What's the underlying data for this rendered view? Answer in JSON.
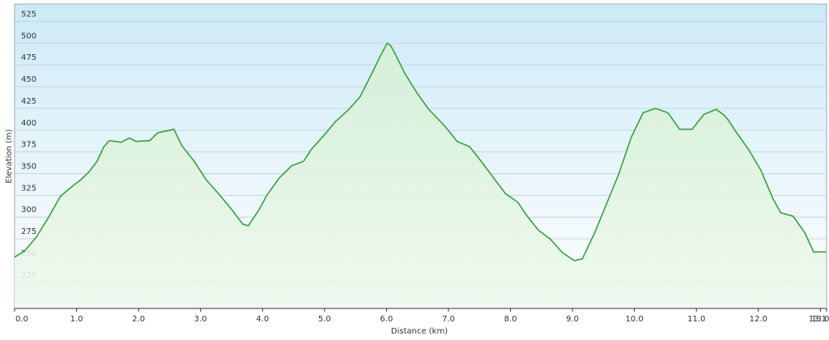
{
  "chart_data": {
    "type": "area",
    "xlabel": "Distance  (km)",
    "ylabel": "Elevation (m)",
    "color": "#3a9e3f",
    "x": [
      0,
      0.16,
      0.35,
      0.55,
      0.74,
      0.94,
      1.07,
      1.2,
      1.33,
      1.44,
      1.53,
      1.72,
      1.85,
      1.96,
      2.18,
      2.31,
      2.51,
      2.57,
      2.7,
      2.9,
      3.09,
      3.29,
      3.49,
      3.68,
      3.77,
      3.94,
      4.07,
      4.27,
      4.47,
      4.66,
      4.79,
      4.99,
      5.18,
      5.38,
      5.57,
      5.77,
      5.9,
      6.01,
      6.07,
      6.16,
      6.29,
      6.49,
      6.68,
      6.95,
      7.14,
      7.34,
      7.53,
      7.73,
      7.92,
      8.12,
      8.25,
      8.45,
      8.64,
      8.84,
      9.03,
      9.16,
      9.36,
      9.56,
      9.75,
      9.95,
      10.14,
      10.34,
      10.54,
      10.73,
      10.93,
      11.12,
      11.32,
      11.45,
      11.51,
      11.64,
      11.84,
      12.04,
      12.23,
      12.36,
      12.56,
      12.75,
      12.89,
      13.09
    ],
    "values": [
      254,
      261,
      277,
      300,
      324,
      336,
      343,
      352,
      364,
      381,
      388,
      386,
      391,
      387,
      388,
      397,
      400,
      401,
      382,
      364,
      343,
      327,
      310,
      292,
      290,
      308,
      325,
      345,
      359,
      364,
      378,
      394,
      410,
      423,
      438,
      466,
      485,
      500,
      497,
      485,
      466,
      443,
      424,
      404,
      387,
      381,
      364,
      345,
      327,
      317,
      303,
      285,
      275,
      259,
      250,
      252,
      282,
      317,
      350,
      392,
      420,
      425,
      420,
      401,
      401,
      418,
      424,
      417,
      412,
      398,
      378,
      354,
      322,
      305,
      301,
      282,
      260,
      260
    ],
    "xlim": [
      0,
      13.1
    ],
    "ylim": [
      195,
      545
    ],
    "xticks": [
      {
        "value": 0,
        "label": "0.0"
      },
      {
        "value": 1,
        "label": "1.0"
      },
      {
        "value": 2,
        "label": "2.0"
      },
      {
        "value": 3,
        "label": "3.0"
      },
      {
        "value": 4,
        "label": "4.0"
      },
      {
        "value": 5,
        "label": "5.0"
      },
      {
        "value": 6,
        "label": "6.0"
      },
      {
        "value": 7,
        "label": "7.0"
      },
      {
        "value": 8,
        "label": "8.0"
      },
      {
        "value": 9,
        "label": "9.0"
      },
      {
        "value": 10,
        "label": "10.0"
      },
      {
        "value": 11,
        "label": "11.0"
      },
      {
        "value": 12,
        "label": "12.0"
      },
      {
        "value": 13,
        "label": "13.0"
      },
      {
        "value": 13.1,
        "label": "13.1"
      }
    ],
    "yticks": [
      225,
      250,
      275,
      300,
      325,
      350,
      375,
      400,
      425,
      450,
      475,
      500,
      525
    ],
    "grid": true
  }
}
